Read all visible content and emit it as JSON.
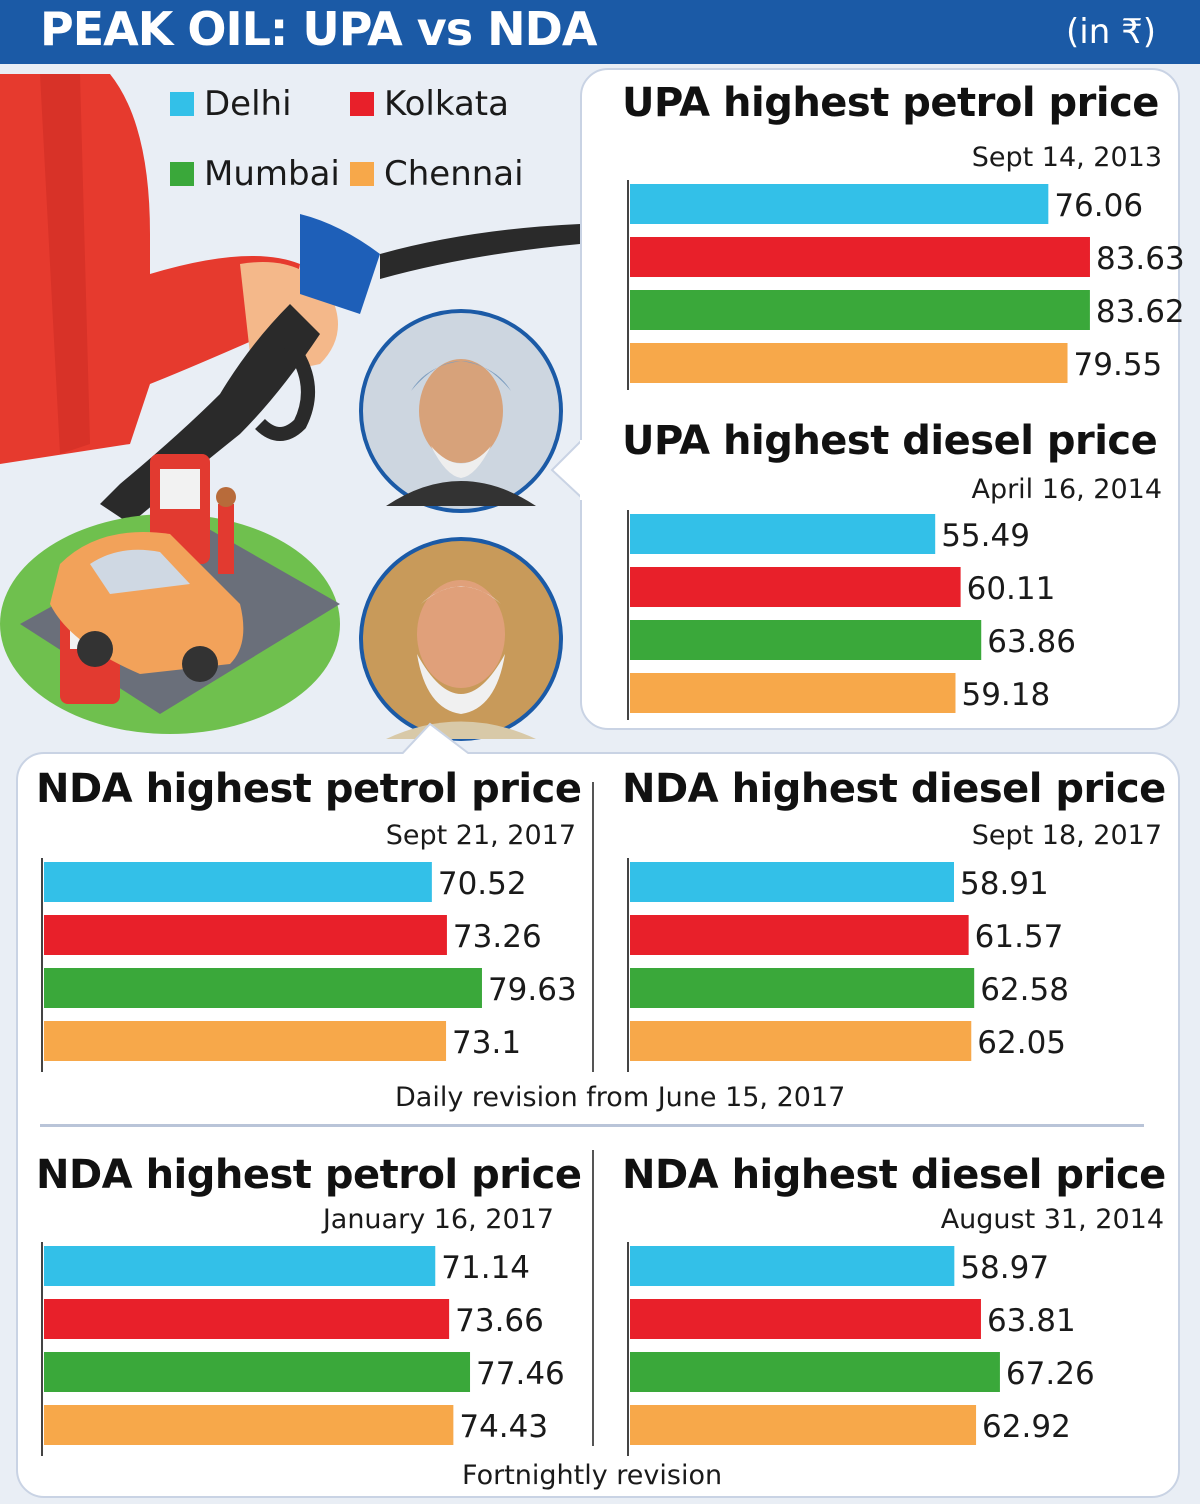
{
  "header": {
    "title": "PEAK OIL: UPA vs NDA",
    "unit": "(in ₹)"
  },
  "legend": [
    {
      "name": "Delhi",
      "color": "#33c0e8"
    },
    {
      "name": "Kolkata",
      "color": "#e8202a"
    },
    {
      "name": "Mumbai",
      "color": "#3aa83a"
    },
    {
      "name": "Chennai",
      "color": "#f7a84a"
    }
  ],
  "notes": {
    "daily": "Daily revision from June 15, 2017",
    "fortnightly": "Fortnightly revision"
  },
  "chart_data": [
    {
      "type": "bar",
      "title": "UPA highest petrol price",
      "date": "Sept 14, 2013",
      "categories": [
        "Delhi",
        "Kolkata",
        "Mumbai",
        "Chennai"
      ],
      "values": [
        76.06,
        83.63,
        83.62,
        79.55
      ],
      "labels": [
        "76.06",
        "83.63",
        "83.62",
        "79.55"
      ]
    },
    {
      "type": "bar",
      "title": "UPA highest diesel price",
      "date": "April 16, 2014",
      "categories": [
        "Delhi",
        "Kolkata",
        "Mumbai",
        "Chennai"
      ],
      "values": [
        55.49,
        60.11,
        63.86,
        59.18
      ],
      "labels": [
        "55.49",
        "60.11",
        "63.86",
        "59.18"
      ]
    },
    {
      "type": "bar",
      "title": "NDA highest petrol price",
      "date": "Sept 21, 2017",
      "categories": [
        "Delhi",
        "Kolkata",
        "Mumbai",
        "Chennai"
      ],
      "values": [
        70.52,
        73.26,
        79.63,
        73.1
      ],
      "labels": [
        "70.52",
        "73.26",
        "79.63",
        "73.1"
      ]
    },
    {
      "type": "bar",
      "title": "NDA highest diesel price",
      "date": "Sept 18, 2017",
      "categories": [
        "Delhi",
        "Kolkata",
        "Mumbai",
        "Chennai"
      ],
      "values": [
        58.91,
        61.57,
        62.58,
        62.05
      ],
      "labels": [
        "58.91",
        "61.57",
        "62.58",
        "62.05"
      ]
    },
    {
      "type": "bar",
      "title": "NDA highest petrol price",
      "date": "January 16, 2017",
      "categories": [
        "Delhi",
        "Kolkata",
        "Mumbai",
        "Chennai"
      ],
      "values": [
        71.14,
        73.66,
        77.46,
        74.43
      ],
      "labels": [
        "71.14",
        "73.66",
        "77.46",
        "74.43"
      ]
    },
    {
      "type": "bar",
      "title": "NDA highest diesel price",
      "date": "August 31, 2014",
      "categories": [
        "Delhi",
        "Kolkata",
        "Mumbai",
        "Chennai"
      ],
      "values": [
        58.97,
        63.81,
        67.26,
        62.92
      ],
      "labels": [
        "58.97",
        "63.81",
        "67.26",
        "62.92"
      ]
    }
  ]
}
